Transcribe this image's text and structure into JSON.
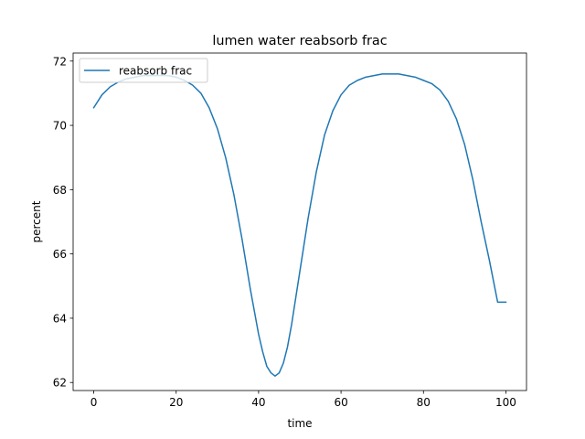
{
  "chart_data": {
    "type": "line",
    "title": "lumen water reabsorb frac",
    "xlabel": "time",
    "ylabel": "percent",
    "xlim": [
      -5,
      105
    ],
    "ylim": [
      61.75,
      72.25
    ],
    "xticks": [
      0,
      20,
      40,
      60,
      80,
      100
    ],
    "yticks": [
      62,
      64,
      66,
      68,
      70,
      72
    ],
    "grid": false,
    "legend": {
      "location": "upper left",
      "entries": [
        "reabsorb frac"
      ]
    },
    "series": [
      {
        "name": "reabsorb frac",
        "color": "#1f77b4",
        "x": [
          0,
          2,
          4,
          6,
          8,
          10,
          12,
          14,
          16,
          18,
          20,
          22,
          24,
          26,
          28,
          30,
          32,
          34,
          36,
          38,
          40,
          41,
          42,
          43,
          44,
          45,
          46,
          47,
          48,
          50,
          52,
          54,
          56,
          58,
          60,
          62,
          64,
          66,
          68,
          70,
          72,
          74,
          76,
          78,
          80,
          82,
          84,
          86,
          88,
          90,
          92,
          94,
          96,
          98,
          100
        ],
        "values": [
          70.55,
          70.95,
          71.2,
          71.35,
          71.45,
          71.5,
          71.55,
          71.55,
          71.55,
          71.55,
          71.5,
          71.4,
          71.25,
          71.0,
          70.55,
          69.9,
          69.0,
          67.85,
          66.45,
          64.9,
          63.5,
          62.95,
          62.5,
          62.3,
          62.2,
          62.3,
          62.6,
          63.1,
          63.8,
          65.45,
          67.1,
          68.55,
          69.7,
          70.45,
          70.95,
          71.25,
          71.4,
          71.5,
          71.55,
          71.6,
          71.6,
          71.6,
          71.55,
          71.5,
          71.4,
          71.3,
          71.1,
          70.75,
          70.2,
          69.4,
          68.3,
          67.0,
          65.8,
          64.5,
          64.5
        ]
      }
    ]
  }
}
